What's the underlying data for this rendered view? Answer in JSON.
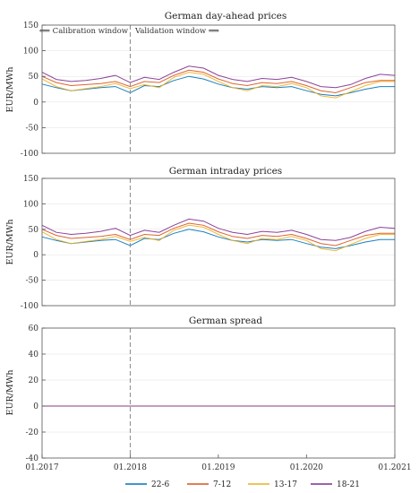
{
  "chart_data": [
    {
      "type": "line",
      "title": "German day-ahead prices",
      "ylabel": "EUR/MWh",
      "xlim": [
        "2017-01-01",
        "2021-01-01"
      ],
      "ylim": [
        -100,
        150
      ],
      "yticks": [
        -100,
        -50,
        0,
        50,
        100,
        150
      ],
      "annotations": {
        "split_date": "2018-01-01",
        "left_label": "⟸ Calibration window",
        "right_label": "Validation window ⟹"
      },
      "series": [
        {
          "name": "22-6",
          "color": "#0072BD",
          "x": [
            "2017-01",
            "2017-03",
            "2017-05",
            "2017-07",
            "2017-09",
            "2017-11",
            "2018-01",
            "2018-03",
            "2018-05",
            "2018-07",
            "2018-09",
            "2018-11",
            "2019-01",
            "2019-03",
            "2019-05",
            "2019-07",
            "2019-09",
            "2019-11",
            "2020-01",
            "2020-03",
            "2020-05",
            "2020-07",
            "2020-09",
            "2020-11",
            "2021-01"
          ],
          "y": [
            35,
            28,
            22,
            25,
            28,
            30,
            18,
            32,
            30,
            42,
            50,
            45,
            35,
            28,
            25,
            30,
            28,
            30,
            22,
            15,
            12,
            18,
            25,
            30,
            30
          ]
        },
        {
          "name": "7-12",
          "color": "#D95319",
          "x": [
            "2017-01",
            "2017-03",
            "2017-05",
            "2017-07",
            "2017-09",
            "2017-11",
            "2018-01",
            "2018-03",
            "2018-05",
            "2018-07",
            "2018-09",
            "2018-11",
            "2019-01",
            "2019-03",
            "2019-05",
            "2019-07",
            "2019-09",
            "2019-11",
            "2020-01",
            "2020-03",
            "2020-05",
            "2020-07",
            "2020-09",
            "2020-11",
            "2021-01"
          ],
          "y": [
            50,
            38,
            32,
            34,
            36,
            40,
            30,
            40,
            38,
            52,
            62,
            58,
            45,
            36,
            32,
            38,
            36,
            40,
            32,
            22,
            18,
            28,
            38,
            42,
            42
          ]
        },
        {
          "name": "13-17",
          "color": "#EDB120",
          "x": [
            "2017-01",
            "2017-03",
            "2017-05",
            "2017-07",
            "2017-09",
            "2017-11",
            "2018-01",
            "2018-03",
            "2018-05",
            "2018-07",
            "2018-09",
            "2018-11",
            "2019-01",
            "2019-03",
            "2019-05",
            "2019-07",
            "2019-09",
            "2019-11",
            "2020-01",
            "2020-03",
            "2020-05",
            "2020-07",
            "2020-09",
            "2020-11",
            "2021-01"
          ],
          "y": [
            45,
            30,
            22,
            26,
            30,
            36,
            26,
            34,
            28,
            48,
            58,
            54,
            40,
            28,
            22,
            32,
            30,
            36,
            28,
            12,
            8,
            20,
            32,
            40,
            40
          ]
        },
        {
          "name": "18-21",
          "color": "#7E2F8E",
          "x": [
            "2017-01",
            "2017-03",
            "2017-05",
            "2017-07",
            "2017-09",
            "2017-11",
            "2018-01",
            "2018-03",
            "2018-05",
            "2018-07",
            "2018-09",
            "2018-11",
            "2019-01",
            "2019-03",
            "2019-05",
            "2019-07",
            "2019-09",
            "2019-11",
            "2020-01",
            "2020-03",
            "2020-05",
            "2020-07",
            "2020-09",
            "2020-11",
            "2021-01"
          ],
          "y": [
            58,
            44,
            40,
            42,
            46,
            52,
            38,
            48,
            44,
            58,
            70,
            66,
            52,
            44,
            40,
            46,
            44,
            48,
            40,
            30,
            28,
            34,
            46,
            54,
            52
          ]
        }
      ]
    },
    {
      "type": "line",
      "title": "German intraday prices",
      "ylabel": "EUR/MWh",
      "xlim": [
        "2017-01-01",
        "2021-01-01"
      ],
      "ylim": [
        -100,
        150
      ],
      "yticks": [
        -100,
        -50,
        0,
        50,
        100,
        150
      ],
      "annotations": {
        "split_date": "2018-01-01"
      },
      "series": [
        {
          "name": "22-6",
          "color": "#0072BD",
          "x": [
            "2017-01",
            "2017-03",
            "2017-05",
            "2017-07",
            "2017-09",
            "2017-11",
            "2018-01",
            "2018-03",
            "2018-05",
            "2018-07",
            "2018-09",
            "2018-11",
            "2019-01",
            "2019-03",
            "2019-05",
            "2019-07",
            "2019-09",
            "2019-11",
            "2020-01",
            "2020-03",
            "2020-05",
            "2020-07",
            "2020-09",
            "2020-11",
            "2021-01"
          ],
          "y": [
            35,
            28,
            22,
            25,
            28,
            30,
            18,
            32,
            30,
            42,
            50,
            45,
            35,
            28,
            25,
            30,
            28,
            30,
            22,
            15,
            12,
            18,
            25,
            30,
            30
          ]
        },
        {
          "name": "7-12",
          "color": "#D95319",
          "x": [
            "2017-01",
            "2017-03",
            "2017-05",
            "2017-07",
            "2017-09",
            "2017-11",
            "2018-01",
            "2018-03",
            "2018-05",
            "2018-07",
            "2018-09",
            "2018-11",
            "2019-01",
            "2019-03",
            "2019-05",
            "2019-07",
            "2019-09",
            "2019-11",
            "2020-01",
            "2020-03",
            "2020-05",
            "2020-07",
            "2020-09",
            "2020-11",
            "2021-01"
          ],
          "y": [
            50,
            38,
            32,
            34,
            36,
            40,
            30,
            40,
            38,
            52,
            62,
            58,
            45,
            36,
            32,
            38,
            36,
            40,
            32,
            22,
            18,
            28,
            38,
            42,
            42
          ]
        },
        {
          "name": "13-17",
          "color": "#EDB120",
          "x": [
            "2017-01",
            "2017-03",
            "2017-05",
            "2017-07",
            "2017-09",
            "2017-11",
            "2018-01",
            "2018-03",
            "2018-05",
            "2018-07",
            "2018-09",
            "2018-11",
            "2019-01",
            "2019-03",
            "2019-05",
            "2019-07",
            "2019-09",
            "2019-11",
            "2020-01",
            "2020-03",
            "2020-05",
            "2020-07",
            "2020-09",
            "2020-11",
            "2021-01"
          ],
          "y": [
            45,
            30,
            22,
            26,
            30,
            36,
            26,
            34,
            28,
            48,
            58,
            54,
            40,
            28,
            22,
            32,
            30,
            36,
            28,
            12,
            8,
            20,
            32,
            40,
            40
          ]
        },
        {
          "name": "18-21",
          "color": "#7E2F8E",
          "x": [
            "2017-01",
            "2017-03",
            "2017-05",
            "2017-07",
            "2017-09",
            "2017-11",
            "2018-01",
            "2018-03",
            "2018-05",
            "2018-07",
            "2018-09",
            "2018-11",
            "2019-01",
            "2019-03",
            "2019-05",
            "2019-07",
            "2019-09",
            "2019-11",
            "2020-01",
            "2020-03",
            "2020-05",
            "2020-07",
            "2020-09",
            "2020-11",
            "2021-01"
          ],
          "y": [
            58,
            44,
            40,
            42,
            46,
            52,
            38,
            48,
            44,
            58,
            70,
            66,
            52,
            44,
            40,
            46,
            44,
            48,
            40,
            30,
            28,
            34,
            46,
            54,
            52
          ]
        }
      ]
    },
    {
      "type": "line",
      "title": "German spread",
      "ylabel": "EUR/MWh",
      "xlim": [
        "2017-01-01",
        "2021-01-01"
      ],
      "ylim": [
        -40,
        60
      ],
      "yticks": [
        -40,
        -20,
        0,
        20,
        40,
        60
      ],
      "annotations": {
        "split_date": "2018-01-01"
      },
      "xticks": [
        "2017-01-01",
        "2018-01-01",
        "2019-01-01",
        "2020-01-01",
        "2021-01-01"
      ],
      "xtick_labels": [
        "01.2017",
        "01.2018",
        "01.2019",
        "01.2020",
        "01.2021"
      ],
      "series": [
        {
          "name": "22-6",
          "color": "#0072BD",
          "x": [
            "2017-01",
            "2017-03",
            "2017-05",
            "2017-07",
            "2017-09",
            "2017-11",
            "2018-01",
            "2018-03",
            "2018-05",
            "2018-07",
            "2018-09",
            "2018-11",
            "2019-01",
            "2019-03",
            "2019-05",
            "2019-07",
            "2019-09",
            "2019-11",
            "2020-01",
            "2020-03",
            "2020-05",
            "2020-07",
            "2020-09",
            "2020-11",
            "2021-01"
          ],
          "y": [
            0,
            0,
            0,
            0,
            0,
            0,
            0,
            0,
            0,
            0,
            0,
            0,
            0,
            0,
            0,
            0,
            0,
            0,
            0,
            0,
            0,
            0,
            0,
            0,
            0
          ]
        },
        {
          "name": "7-12",
          "color": "#D95319",
          "x": [
            "2017-01",
            "2017-03",
            "2017-05",
            "2017-07",
            "2017-09",
            "2017-11",
            "2018-01",
            "2018-03",
            "2018-05",
            "2018-07",
            "2018-09",
            "2018-11",
            "2019-01",
            "2019-03",
            "2019-05",
            "2019-07",
            "2019-09",
            "2019-11",
            "2020-01",
            "2020-03",
            "2020-05",
            "2020-07",
            "2020-09",
            "2020-11",
            "2021-01"
          ],
          "y": [
            0,
            0,
            0,
            0,
            0,
            0,
            0,
            0,
            0,
            0,
            0,
            0,
            0,
            0,
            0,
            0,
            0,
            0,
            0,
            0,
            0,
            0,
            0,
            0,
            0
          ]
        },
        {
          "name": "13-17",
          "color": "#EDB120",
          "x": [
            "2017-01",
            "2017-03",
            "2017-05",
            "2017-07",
            "2017-09",
            "2017-11",
            "2018-01",
            "2018-03",
            "2018-05",
            "2018-07",
            "2018-09",
            "2018-11",
            "2019-01",
            "2019-03",
            "2019-05",
            "2019-07",
            "2019-09",
            "2019-11",
            "2020-01",
            "2020-03",
            "2020-05",
            "2020-07",
            "2020-09",
            "2020-11",
            "2021-01"
          ],
          "y": [
            0,
            0,
            0,
            0,
            0,
            0,
            0,
            0,
            0,
            0,
            0,
            0,
            0,
            0,
            0,
            0,
            0,
            0,
            0,
            0,
            0,
            0,
            0,
            0,
            0
          ]
        },
        {
          "name": "18-21",
          "color": "#7E2F8E",
          "x": [
            "2017-01",
            "2017-03",
            "2017-05",
            "2017-07",
            "2017-09",
            "2017-11",
            "2018-01",
            "2018-03",
            "2018-05",
            "2018-07",
            "2018-09",
            "2018-11",
            "2019-01",
            "2019-03",
            "2019-05",
            "2019-07",
            "2019-09",
            "2019-11",
            "2020-01",
            "2020-03",
            "2020-05",
            "2020-07",
            "2020-09",
            "2020-11",
            "2021-01"
          ],
          "y": [
            0,
            0,
            0,
            0,
            0,
            0,
            0,
            0,
            0,
            0,
            0,
            0,
            0,
            0,
            0,
            0,
            0,
            0,
            0,
            0,
            0,
            0,
            0,
            0,
            0
          ]
        }
      ]
    }
  ],
  "legend": {
    "placement": "bottom",
    "entries": [
      {
        "label": "22-6",
        "color": "#0072BD"
      },
      {
        "label": "7-12",
        "color": "#D95319"
      },
      {
        "label": "13-17",
        "color": "#EDB120"
      },
      {
        "label": "18-21",
        "color": "#7E2F8E"
      }
    ]
  }
}
